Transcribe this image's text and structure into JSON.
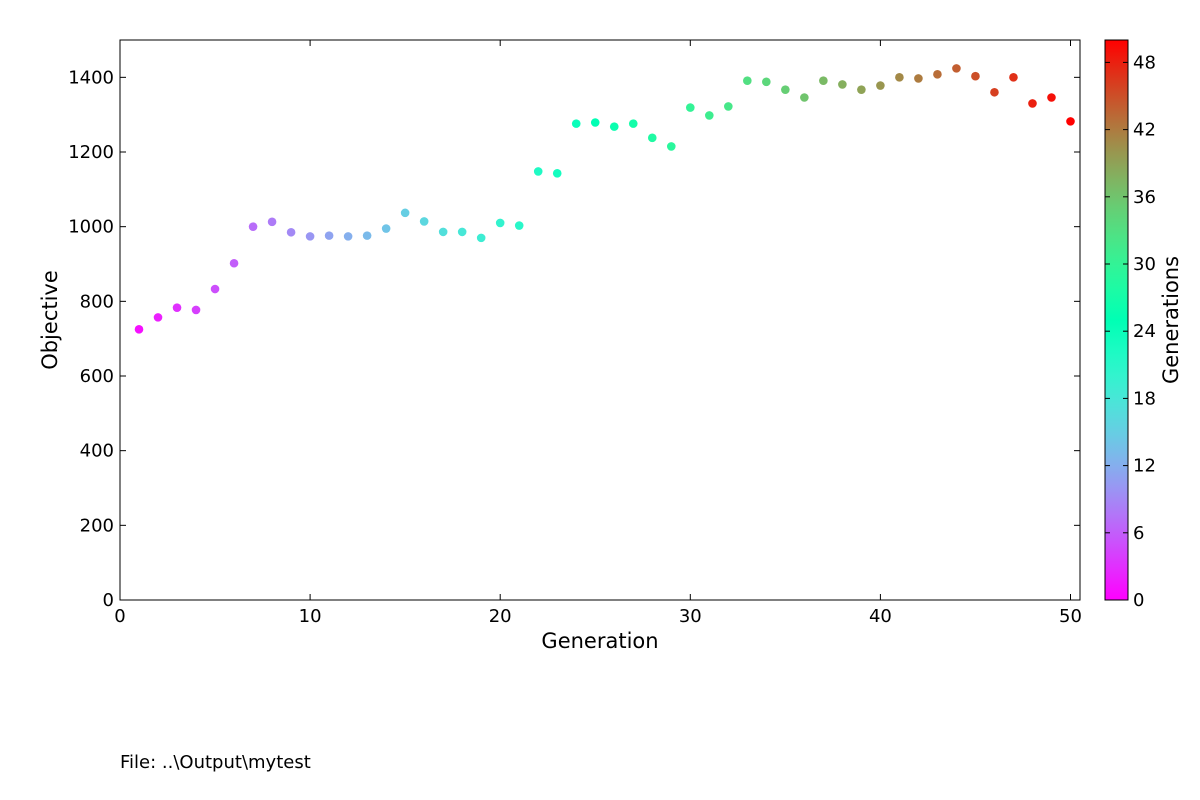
{
  "chart_data": {
    "type": "scatter",
    "title": "",
    "xlabel": "Generation",
    "ylabel": "Objective",
    "xlim": [
      0,
      50.5
    ],
    "ylim": [
      0,
      1500
    ],
    "xticks": [
      0,
      10,
      20,
      30,
      40,
      50
    ],
    "yticks": [
      0,
      200,
      400,
      600,
      800,
      1000,
      1200,
      1400
    ],
    "grid": false,
    "x": [
      1,
      2,
      3,
      4,
      5,
      6,
      7,
      8,
      9,
      10,
      11,
      12,
      13,
      14,
      15,
      16,
      17,
      18,
      19,
      20,
      21,
      22,
      23,
      24,
      25,
      26,
      27,
      28,
      29,
      30,
      31,
      32,
      33,
      34,
      35,
      36,
      37,
      38,
      39,
      40,
      41,
      42,
      43,
      44,
      45,
      46,
      47,
      48,
      49,
      50
    ],
    "y": [
      725,
      757,
      783,
      777,
      833,
      902,
      1000,
      1013,
      985,
      974,
      976,
      974,
      976,
      995,
      1037,
      1014,
      986,
      986,
      970,
      1010,
      1003,
      1148,
      1143,
      1276,
      1279,
      1268,
      1276,
      1238,
      1215,
      1319,
      1298,
      1322,
      1391,
      1388,
      1367,
      1346,
      1391,
      1381,
      1367,
      1378,
      1400,
      1397,
      1408,
      1424,
      1403,
      1360,
      1400,
      1330,
      1346,
      1282
    ],
    "colorbar": {
      "label": "Generations",
      "range": [
        0,
        50
      ],
      "ticks": [
        0,
        6,
        12,
        18,
        24,
        30,
        36,
        42,
        48
      ],
      "colormap": "rainbow"
    }
  },
  "footer": {
    "file_label": "File: ..\\Output\\mytest"
  }
}
